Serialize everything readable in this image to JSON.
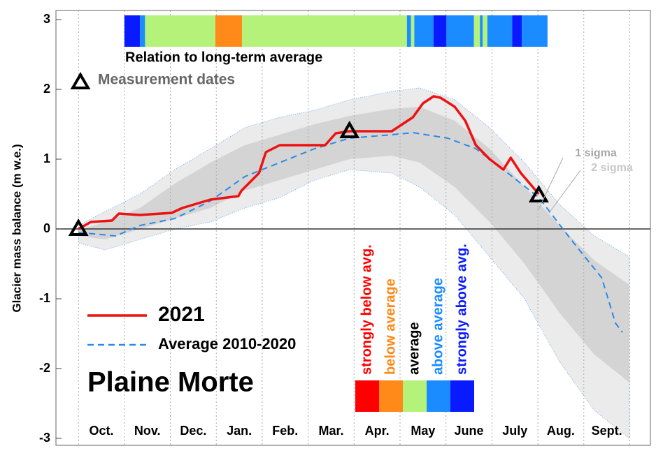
{
  "chart_data": {
    "type": "line",
    "title": "Plaine Morte",
    "y_label": "Glacier mass balance (m w.e.)",
    "categories": [
      "Oct.",
      "Nov.",
      "Dec.",
      "Jan.",
      "Feb.",
      "Mar.",
      "Apr.",
      "May",
      "June",
      "July",
      "Aug.",
      "Sept."
    ],
    "xlim": [
      -0.49,
      12.45
    ],
    "xticks": [
      0,
      1,
      2,
      3,
      4,
      5,
      6,
      7,
      8,
      9,
      10,
      11,
      12
    ],
    "ylim": [
      -3.1,
      3.13
    ],
    "yticks": [
      -3,
      -2,
      -1,
      0,
      1,
      2,
      3
    ],
    "grid": true,
    "series": [
      {
        "name": "2021",
        "color": "#ee1111",
        "style": "solid",
        "x": [
          0,
          0.27,
          0.73,
          0.88,
          1.34,
          2.03,
          2.26,
          2.87,
          3.48,
          3.55,
          3.93,
          4.08,
          4.38,
          5.37,
          5.6,
          5.9,
          6.82,
          7.05,
          7.28,
          7.5,
          7.73,
          7.88,
          8.19,
          8.42,
          8.65,
          8.95,
          9.25,
          9.41,
          9.63,
          10.02
        ],
        "values": [
          0,
          0.1,
          0.12,
          0.22,
          0.2,
          0.23,
          0.3,
          0.42,
          0.47,
          0.55,
          0.8,
          1.1,
          1.2,
          1.2,
          1.37,
          1.4,
          1.4,
          1.5,
          1.6,
          1.8,
          1.9,
          1.88,
          1.75,
          1.55,
          1.2,
          1.0,
          0.85,
          1.02,
          0.8,
          0.5
        ]
      },
      {
        "name": "Average 2010-2020",
        "color": "#2a8ae6",
        "style": "dashed",
        "x": [
          0,
          0.81,
          1.34,
          2.1,
          2.87,
          3.62,
          4.38,
          5.14,
          5.9,
          6.82,
          7.28,
          8.04,
          8.65,
          9.25,
          10.02,
          10.78,
          11.39,
          11.69,
          11.84
        ],
        "values": [
          -0.05,
          -0.1,
          0.05,
          0.15,
          0.4,
          0.75,
          0.95,
          1.15,
          1.3,
          1.35,
          1.38,
          1.3,
          1.15,
          0.85,
          0.45,
          -0.2,
          -0.7,
          -1.35,
          -1.48
        ]
      }
    ],
    "bands": [
      {
        "name": "2 sigma",
        "color": "#ebebeb",
        "x": [
          0,
          0.58,
          1.34,
          2.1,
          2.87,
          3.62,
          4.38,
          5.14,
          5.9,
          6.82,
          7.43,
          8.19,
          8.95,
          9.71,
          10.47,
          11.23,
          11.99
        ],
        "upper": [
          0.05,
          0.25,
          0.5,
          0.85,
          1.15,
          1.45,
          1.6,
          1.7,
          1.85,
          1.97,
          2.02,
          1.85,
          1.45,
          0.95,
          0.35,
          -0.1,
          -0.4
        ],
        "lower": [
          -0.2,
          -0.3,
          -0.15,
          0,
          0.1,
          0.3,
          0.45,
          0.7,
          0.85,
          0.8,
          0.6,
          0.2,
          -0.4,
          -1.0,
          -1.9,
          -2.6,
          -3.0
        ]
      },
      {
        "name": "1 sigma",
        "color": "#d4d4d4",
        "x": [
          0,
          0.58,
          1.34,
          2.1,
          2.87,
          3.62,
          4.38,
          5.14,
          5.9,
          6.82,
          7.43,
          8.19,
          8.95,
          9.71,
          10.47,
          11.23,
          11.99
        ],
        "upper": [
          -0.02,
          0.1,
          0.3,
          0.65,
          0.95,
          1.2,
          1.35,
          1.5,
          1.62,
          1.72,
          1.75,
          1.55,
          1.15,
          0.6,
          0.05,
          -0.45,
          -0.8
        ],
        "lower": [
          -0.1,
          -0.15,
          0,
          0.15,
          0.3,
          0.55,
          0.7,
          0.85,
          1.0,
          1.05,
          0.95,
          0.6,
          0.1,
          -0.5,
          -1.2,
          -1.8,
          -2.2
        ]
      }
    ],
    "measurements": {
      "name": "Measurement dates",
      "x": [
        0,
        5.9,
        10.02
      ],
      "values": [
        0,
        1.4,
        0.48
      ]
    },
    "relation": {
      "title": "Relation to long-term average",
      "segments": [
        {
          "start": 1.0,
          "end": 1.34,
          "color": "#0a1aff"
        },
        {
          "start": 1.34,
          "end": 1.45,
          "color": "#1a8cff"
        },
        {
          "start": 1.45,
          "end": 2.98,
          "color": "#b5f27a"
        },
        {
          "start": 2.98,
          "end": 3.56,
          "color": "#ff8a1a"
        },
        {
          "start": 3.56,
          "end": 7.15,
          "color": "#b5f27a"
        },
        {
          "start": 7.15,
          "end": 7.24,
          "color": "#1a8cff"
        },
        {
          "start": 7.24,
          "end": 7.31,
          "color": "#b5f27a"
        },
        {
          "start": 7.31,
          "end": 7.73,
          "color": "#1a8cff"
        },
        {
          "start": 7.73,
          "end": 8.01,
          "color": "#0a1aff"
        },
        {
          "start": 8.01,
          "end": 8.61,
          "color": "#1a8cff"
        },
        {
          "start": 8.61,
          "end": 8.74,
          "color": "#b5f27a"
        },
        {
          "start": 8.74,
          "end": 8.8,
          "color": "#1a8cff"
        },
        {
          "start": 8.8,
          "end": 8.9,
          "color": "#b5f27a"
        },
        {
          "start": 8.9,
          "end": 9.44,
          "color": "#1a8cff"
        },
        {
          "start": 9.44,
          "end": 9.65,
          "color": "#0a1aff"
        },
        {
          "start": 9.65,
          "end": 10.21,
          "color": "#1a8cff"
        }
      ]
    },
    "relation_legend": [
      {
        "label": "strongly below avg.",
        "color": "#ff0000",
        "label_color": "#ff0000"
      },
      {
        "label": "below average",
        "color": "#ff8a1a",
        "label_color": "#ff8a1a"
      },
      {
        "label": "average",
        "color": "#b5f27a",
        "label_color": "#000000"
      },
      {
        "label": "above average",
        "color": "#1a8cff",
        "label_color": "#1a8cff"
      },
      {
        "label": "strongly above avg.",
        "color": "#0a1aff",
        "label_color": "#0a1aff"
      }
    ]
  }
}
